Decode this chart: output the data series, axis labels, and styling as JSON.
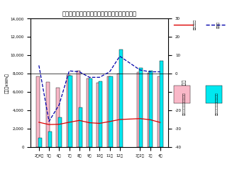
{
  "title": "電力需要実績・発電実績及び前年同月比の推移",
  "ylabel_left": "（百万kWh）",
  "ylabel_right": "（％）",
  "x_labels": [
    "2年4月",
    "5月",
    "6月",
    "7月",
    "8月",
    "9月",
    "10月",
    "11月",
    "12月",
    "3年2月",
    "3月",
    "4月"
  ],
  "x_positions": [
    0,
    1,
    2,
    3,
    4,
    5,
    6,
    7,
    8,
    10,
    11,
    12
  ],
  "demand_bars": [
    7700,
    7100,
    6500,
    7850,
    8300,
    7500,
    7000,
    7700,
    8000,
    8200,
    8100,
    7700
  ],
  "gen_bars": [
    1000,
    1700,
    3200,
    7800,
    4300,
    7500,
    7200,
    7700,
    10600,
    8600,
    8300,
    9400
  ],
  "yoy_blue": [
    4.5,
    -26,
    -17,
    1.5,
    1,
    -2,
    -2,
    1,
    9.5,
    2,
    1,
    1
  ],
  "red_line": [
    2700,
    2450,
    2480,
    2700,
    2900,
    2650,
    2580,
    2780,
    3000,
    3100,
    2980,
    2680
  ],
  "ylim_left": [
    0,
    14000
  ],
  "ylim_right": [
    -40,
    30
  ],
  "yticks_left": [
    0,
    2000,
    4000,
    6000,
    8000,
    10000,
    12000,
    14000
  ],
  "ytick_labels_left": [
    "0",
    "2,000",
    "4,000",
    "6,000",
    "8,000",
    "10,000",
    "12,000",
    "14,000"
  ],
  "yticks_right": [
    -40,
    -30,
    -20,
    -10,
    0,
    10,
    20,
    30
  ],
  "ytick_labels_right": [
    "-40",
    "-30",
    "-20",
    "-10",
    "0",
    "10",
    "20",
    "30"
  ],
  "bar_width": 0.4,
  "demand_bar_color": "#f9b8c8",
  "gen_bar_color": "#00e8f0",
  "red_line_color": "#dd0000",
  "blue_line_color": "#0000aa",
  "background_color": "#ffffff",
  "legend_labels": [
    "電力需要実績",
    "発電実績",
    "前年同月比（需要）（暫定）",
    "前年同月比（発電）（暫定）"
  ]
}
